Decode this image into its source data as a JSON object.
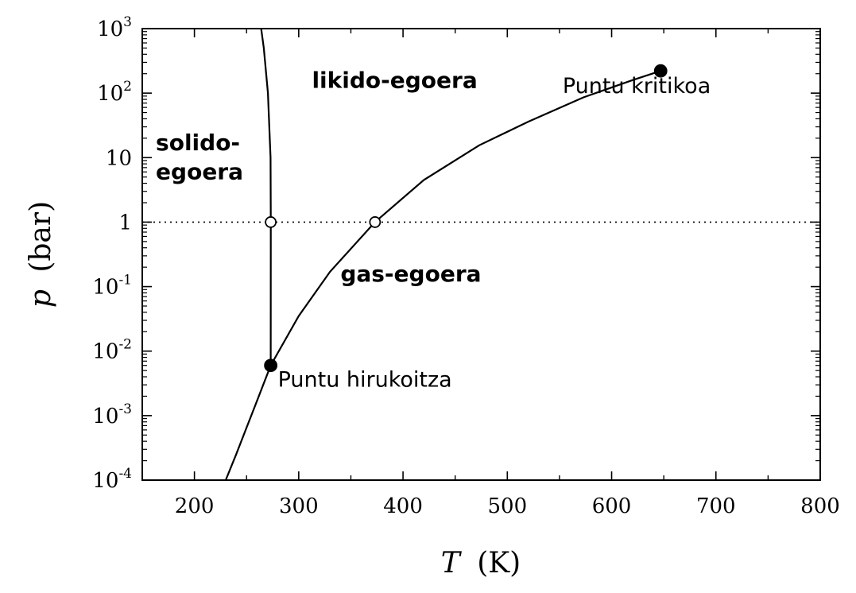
{
  "chart_data": {
    "type": "line",
    "xlabel": {
      "symbol": "T",
      "unit": "(K)"
    },
    "ylabel": {
      "symbol": "p",
      "unit": "(bar)"
    },
    "xlim": [
      150,
      800
    ],
    "ylim": [
      0.0001,
      1000
    ],
    "yscale": "log",
    "grid": false,
    "x_ticks": [
      200,
      300,
      400,
      500,
      600,
      700,
      800
    ],
    "x_minor_ticks": [
      150,
      250,
      350,
      450,
      550,
      650,
      750
    ],
    "y_ticks": [
      {
        "value": 0.0001,
        "base": "10",
        "exp": "-4"
      },
      {
        "value": 0.001,
        "base": "10",
        "exp": "-3"
      },
      {
        "value": 0.01,
        "base": "10",
        "exp": "-2"
      },
      {
        "value": 0.1,
        "base": "10",
        "exp": "-1"
      },
      {
        "value": 1,
        "base": "1",
        "exp": ""
      },
      {
        "value": 10,
        "base": "10",
        "exp": ""
      },
      {
        "value": 100,
        "base": "10",
        "exp": "2"
      },
      {
        "value": 1000,
        "base": "10",
        "exp": "3"
      }
    ],
    "series": [
      {
        "style": "solid",
        "points": [
          [
            230,
            0.0001
          ],
          [
            240,
            0.00025
          ],
          [
            250,
            0.00065
          ],
          [
            260,
            0.0017
          ],
          [
            273.16,
            0.006
          ],
          [
            300,
            0.035
          ],
          [
            330,
            0.17
          ],
          [
            373.15,
            1.0
          ],
          [
            420,
            4.5
          ],
          [
            473,
            15.5
          ],
          [
            520,
            36
          ],
          [
            573,
            86
          ],
          [
            620,
            159
          ],
          [
            647,
            221
          ]
        ]
      },
      {
        "style": "solid",
        "points": [
          [
            273.16,
            0.006
          ],
          [
            273.2,
            1.0
          ],
          [
            273.0,
            10
          ],
          [
            270.5,
            100
          ],
          [
            266.5,
            500
          ],
          [
            264,
            1000
          ]
        ]
      },
      {
        "style": "dotted",
        "points": [
          [
            150,
            1.0
          ],
          [
            800,
            1.0
          ]
        ]
      }
    ],
    "markers": [
      {
        "x": 273.16,
        "y": 0.006,
        "fill": "filled"
      },
      {
        "x": 647,
        "y": 221,
        "fill": "filled"
      },
      {
        "x": 273.15,
        "y": 1.0,
        "fill": "open"
      },
      {
        "x": 373.15,
        "y": 1.0,
        "fill": "open"
      }
    ],
    "annotations": [
      {
        "name": "region-label-liquid",
        "lines": [
          "likido-egoera"
        ],
        "x": 392,
        "y": 120,
        "class": "region-label",
        "anchor": "middle"
      },
      {
        "name": "region-label-solid",
        "lines": [
          "solido-",
          "egoera"
        ],
        "x": 163,
        "y": 13,
        "class": "region-label",
        "anchor": "start"
      },
      {
        "name": "region-label-gas",
        "lines": [
          "gas-egoera"
        ],
        "x": 340,
        "y": 0.12,
        "class": "region-label",
        "anchor": "start"
      },
      {
        "name": "critical-point-label",
        "lines": [
          "Puntu kritikoa"
        ],
        "x": 553,
        "y": 100,
        "class": "point-label",
        "anchor": "start"
      },
      {
        "name": "triple-point-label",
        "lines": [
          "Puntu hirukoitza"
        ],
        "x": 280,
        "y": 0.0028,
        "class": "point-label",
        "anchor": "start"
      }
    ]
  }
}
